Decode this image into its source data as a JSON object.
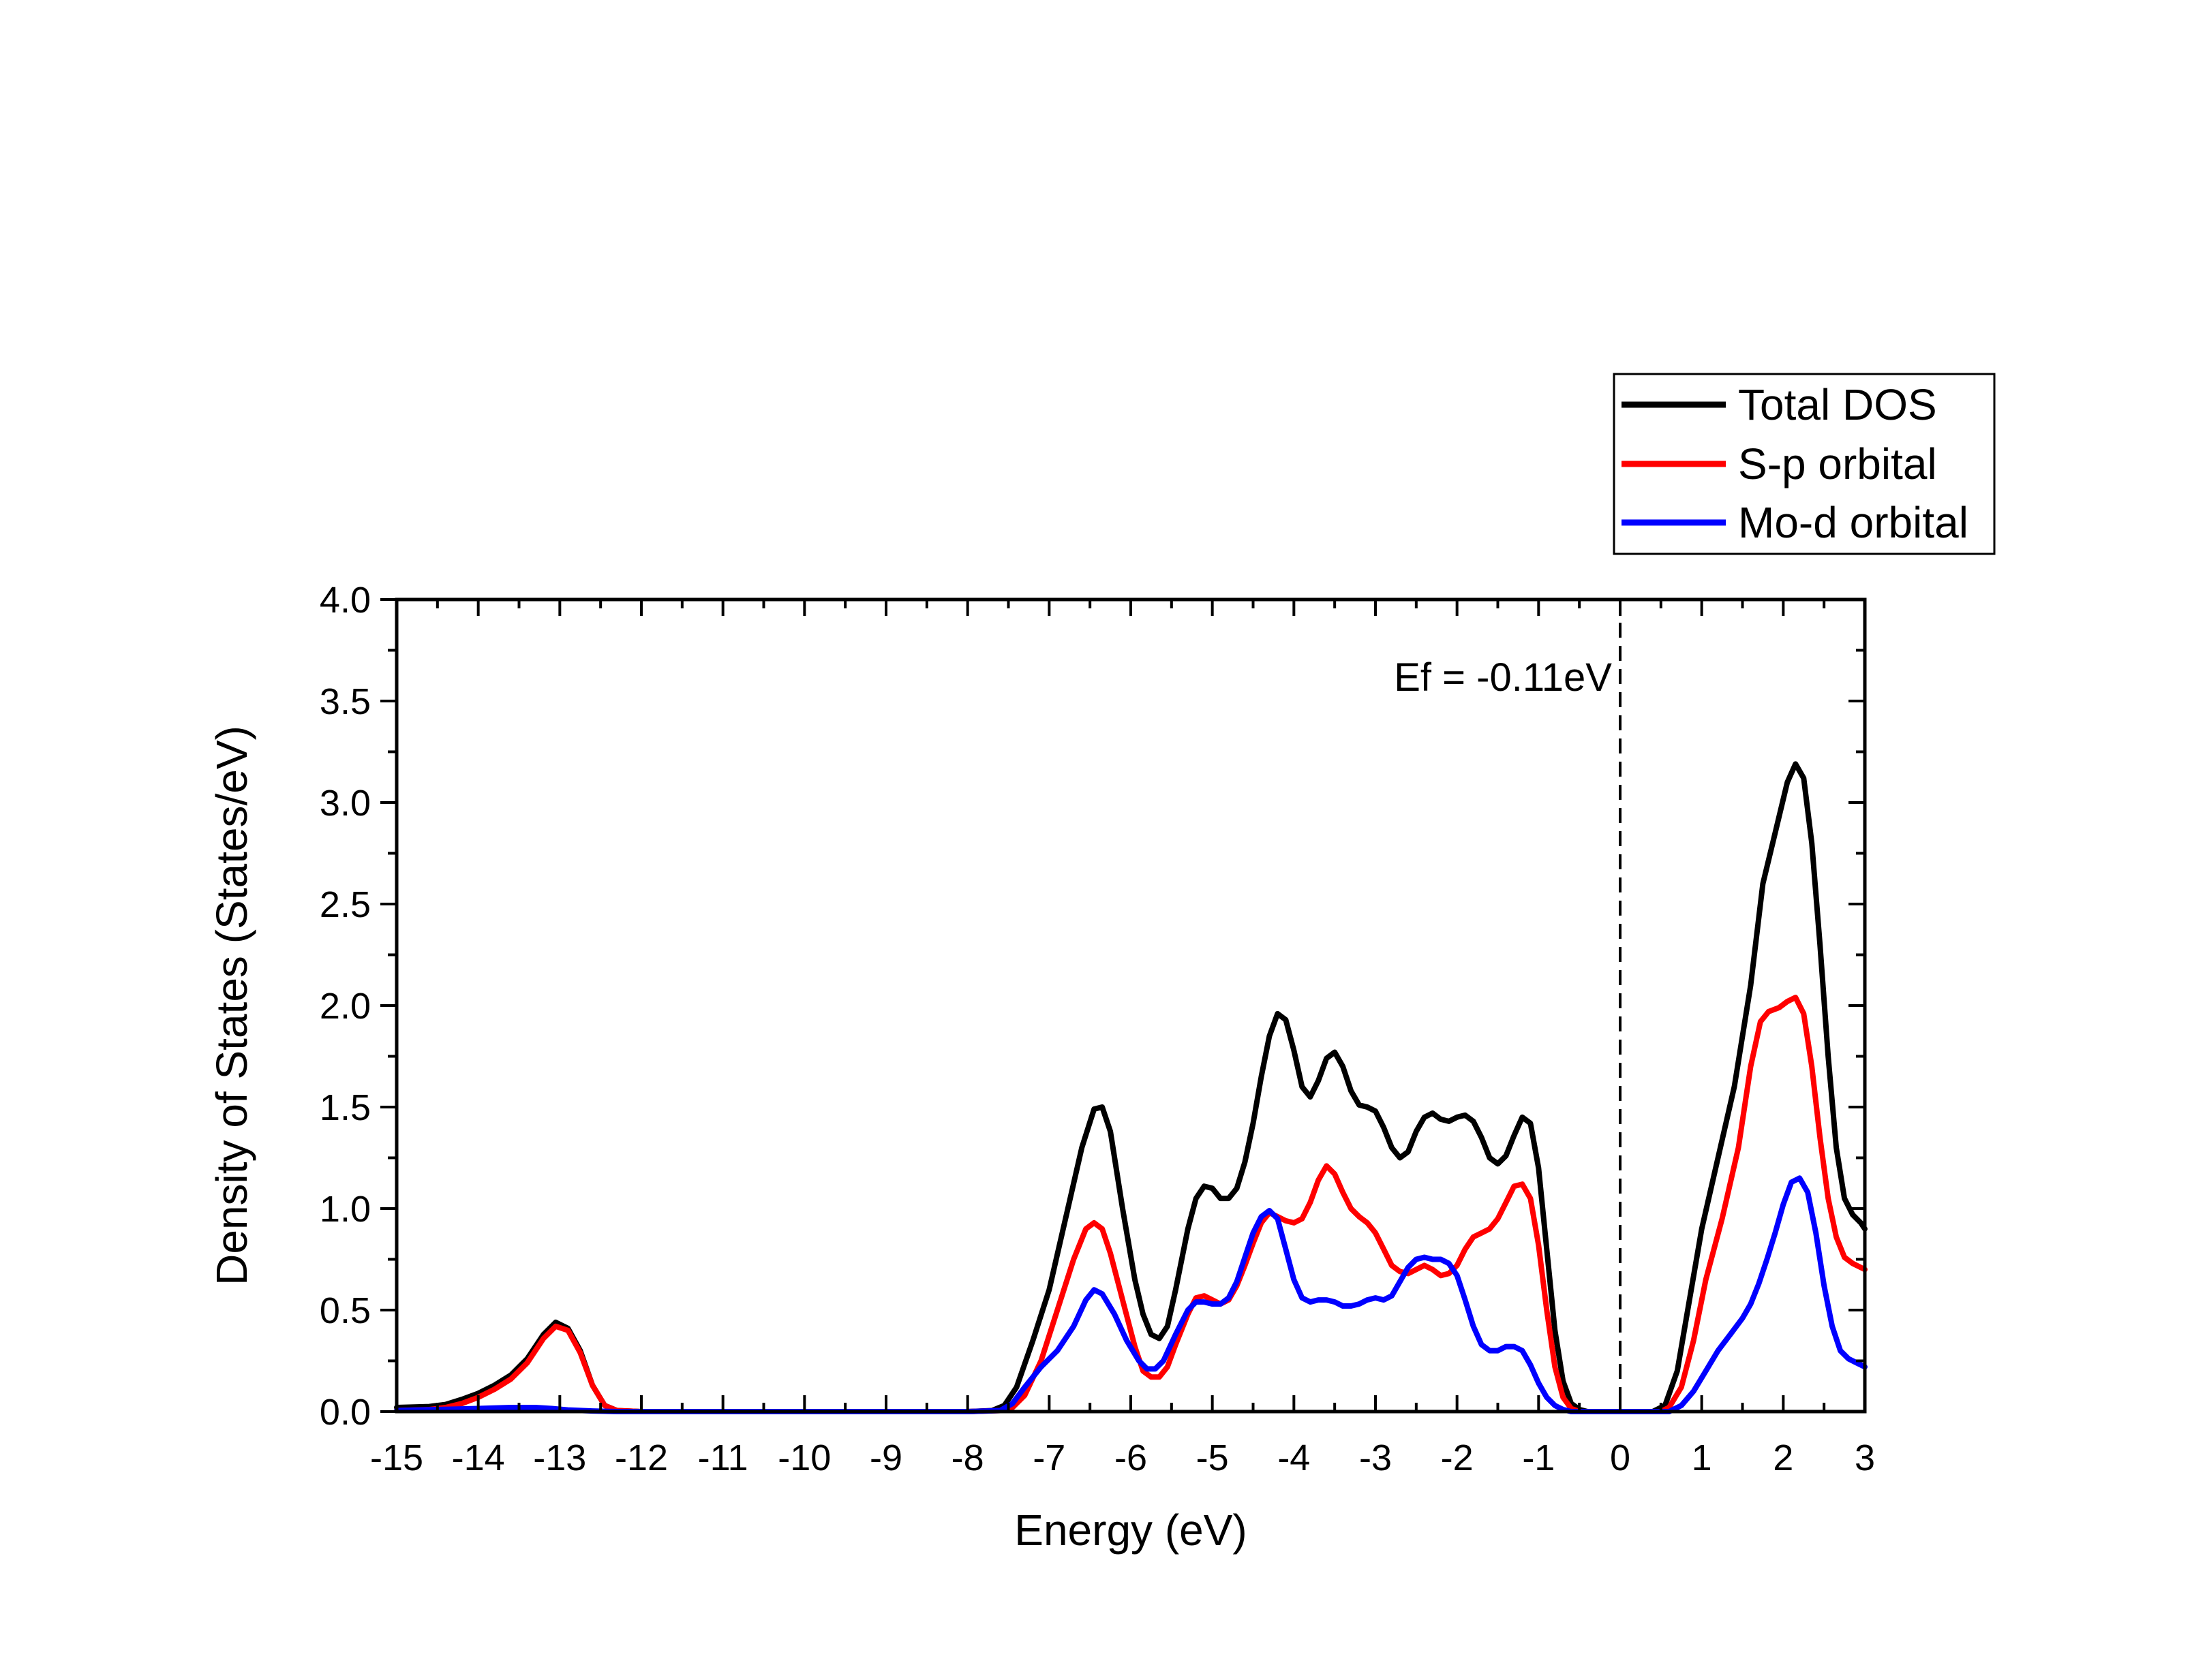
{
  "chart_data": {
    "type": "line",
    "title": "",
    "xlabel": "Energy (eV)",
    "ylabel": "Density of States (States/eV)",
    "xlim": [
      -15,
      3
    ],
    "ylim": [
      0,
      4
    ],
    "xticks": [
      -15,
      -14,
      -13,
      -12,
      -11,
      -10,
      -9,
      -8,
      -7,
      -6,
      -5,
      -4,
      -3,
      -2,
      -1,
      0,
      1,
      2,
      3
    ],
    "xtick_labels": [
      "-15",
      "-14",
      "-13",
      "-12",
      "-11",
      "-10",
      "-9",
      "-8",
      "-7",
      "-6",
      "-5",
      "-4",
      "-3",
      "-2",
      "-1",
      "0",
      "1",
      "2",
      "3"
    ],
    "yticks": [
      0,
      0.5,
      1,
      1.5,
      2,
      2.5,
      3,
      3.5,
      4
    ],
    "ytick_labels": [
      "0.0",
      "0.5",
      "1.0",
      "1.5",
      "2.0",
      "2.5",
      "3.0",
      "3.5",
      "4.0"
    ],
    "grid": false,
    "legend_position": "top-right, outside plot",
    "series": [
      {
        "name": "Total DOS",
        "color": "#000000",
        "points": [
          [
            -15,
            0.02
          ],
          [
            -14.6,
            0.025
          ],
          [
            -14.4,
            0.035
          ],
          [
            -14.2,
            0.06
          ],
          [
            -14.0,
            0.09
          ],
          [
            -13.8,
            0.13
          ],
          [
            -13.6,
            0.18
          ],
          [
            -13.4,
            0.26
          ],
          [
            -13.2,
            0.38
          ],
          [
            -13.05,
            0.44
          ],
          [
            -12.9,
            0.41
          ],
          [
            -12.75,
            0.3
          ],
          [
            -12.6,
            0.13
          ],
          [
            -12.45,
            0.03
          ],
          [
            -12.3,
            0.005
          ],
          [
            -12.0,
            0.0
          ],
          [
            -8.0,
            0.0
          ],
          [
            -7.7,
            0.005
          ],
          [
            -7.55,
            0.03
          ],
          [
            -7.4,
            0.12
          ],
          [
            -7.2,
            0.35
          ],
          [
            -7.0,
            0.6
          ],
          [
            -6.8,
            0.95
          ],
          [
            -6.6,
            1.3
          ],
          [
            -6.45,
            1.49
          ],
          [
            -6.35,
            1.5
          ],
          [
            -6.25,
            1.38
          ],
          [
            -6.1,
            1.0
          ],
          [
            -5.95,
            0.65
          ],
          [
            -5.85,
            0.48
          ],
          [
            -5.75,
            0.38
          ],
          [
            -5.65,
            0.36
          ],
          [
            -5.55,
            0.42
          ],
          [
            -5.45,
            0.6
          ],
          [
            -5.3,
            0.9
          ],
          [
            -5.2,
            1.05
          ],
          [
            -5.1,
            1.11
          ],
          [
            -5.0,
            1.1
          ],
          [
            -4.9,
            1.05
          ],
          [
            -4.8,
            1.05
          ],
          [
            -4.7,
            1.1
          ],
          [
            -4.6,
            1.23
          ],
          [
            -4.5,
            1.42
          ],
          [
            -4.4,
            1.65
          ],
          [
            -4.3,
            1.85
          ],
          [
            -4.2,
            1.96
          ],
          [
            -4.1,
            1.93
          ],
          [
            -4.0,
            1.78
          ],
          [
            -3.9,
            1.6
          ],
          [
            -3.8,
            1.55
          ],
          [
            -3.7,
            1.63
          ],
          [
            -3.6,
            1.74
          ],
          [
            -3.5,
            1.77
          ],
          [
            -3.4,
            1.7
          ],
          [
            -3.3,
            1.58
          ],
          [
            -3.2,
            1.51
          ],
          [
            -3.1,
            1.5
          ],
          [
            -3.0,
            1.48
          ],
          [
            -2.9,
            1.4
          ],
          [
            -2.8,
            1.3
          ],
          [
            -2.7,
            1.25
          ],
          [
            -2.6,
            1.28
          ],
          [
            -2.5,
            1.38
          ],
          [
            -2.4,
            1.45
          ],
          [
            -2.3,
            1.47
          ],
          [
            -2.2,
            1.44
          ],
          [
            -2.1,
            1.43
          ],
          [
            -2.0,
            1.45
          ],
          [
            -1.9,
            1.46
          ],
          [
            -1.8,
            1.43
          ],
          [
            -1.7,
            1.35
          ],
          [
            -1.6,
            1.25
          ],
          [
            -1.5,
            1.22
          ],
          [
            -1.4,
            1.26
          ],
          [
            -1.3,
            1.36
          ],
          [
            -1.2,
            1.45
          ],
          [
            -1.1,
            1.42
          ],
          [
            -1.0,
            1.2
          ],
          [
            -0.9,
            0.8
          ],
          [
            -0.8,
            0.4
          ],
          [
            -0.7,
            0.15
          ],
          [
            -0.6,
            0.04
          ],
          [
            -0.5,
            0.01
          ],
          [
            -0.4,
            0.0
          ],
          [
            0.4,
            0.0
          ],
          [
            0.55,
            0.03
          ],
          [
            0.7,
            0.2
          ],
          [
            0.85,
            0.55
          ],
          [
            1.0,
            0.9
          ],
          [
            1.2,
            1.25
          ],
          [
            1.4,
            1.6
          ],
          [
            1.6,
            2.1
          ],
          [
            1.75,
            2.6
          ],
          [
            1.9,
            2.85
          ],
          [
            2.05,
            3.1
          ],
          [
            2.15,
            3.19
          ],
          [
            2.25,
            3.12
          ],
          [
            2.35,
            2.8
          ],
          [
            2.45,
            2.3
          ],
          [
            2.55,
            1.75
          ],
          [
            2.65,
            1.3
          ],
          [
            2.75,
            1.05
          ],
          [
            2.85,
            0.97
          ],
          [
            2.95,
            0.93
          ],
          [
            3.0,
            0.9
          ]
        ]
      },
      {
        "name": "S-p orbital",
        "color": "#ff0000",
        "points": [
          [
            -15,
            0.005
          ],
          [
            -14.6,
            0.01
          ],
          [
            -14.4,
            0.02
          ],
          [
            -14.2,
            0.04
          ],
          [
            -14.0,
            0.07
          ],
          [
            -13.8,
            0.11
          ],
          [
            -13.6,
            0.16
          ],
          [
            -13.4,
            0.24
          ],
          [
            -13.2,
            0.36
          ],
          [
            -13.05,
            0.42
          ],
          [
            -12.9,
            0.4
          ],
          [
            -12.75,
            0.29
          ],
          [
            -12.6,
            0.13
          ],
          [
            -12.45,
            0.03
          ],
          [
            -12.3,
            0.005
          ],
          [
            -12.0,
            0.0
          ],
          [
            -8.0,
            0.0
          ],
          [
            -7.6,
            0.005
          ],
          [
            -7.45,
            0.02
          ],
          [
            -7.3,
            0.08
          ],
          [
            -7.1,
            0.25
          ],
          [
            -6.9,
            0.5
          ],
          [
            -6.7,
            0.75
          ],
          [
            -6.55,
            0.9
          ],
          [
            -6.45,
            0.93
          ],
          [
            -6.35,
            0.9
          ],
          [
            -6.25,
            0.78
          ],
          [
            -6.1,
            0.55
          ],
          [
            -5.95,
            0.32
          ],
          [
            -5.85,
            0.2
          ],
          [
            -5.75,
            0.17
          ],
          [
            -5.65,
            0.17
          ],
          [
            -5.55,
            0.22
          ],
          [
            -5.45,
            0.33
          ],
          [
            -5.3,
            0.48
          ],
          [
            -5.2,
            0.56
          ],
          [
            -5.1,
            0.57
          ],
          [
            -5.0,
            0.55
          ],
          [
            -4.9,
            0.53
          ],
          [
            -4.8,
            0.55
          ],
          [
            -4.7,
            0.62
          ],
          [
            -4.6,
            0.72
          ],
          [
            -4.5,
            0.83
          ],
          [
            -4.4,
            0.93
          ],
          [
            -4.3,
            0.98
          ],
          [
            -4.2,
            0.96
          ],
          [
            -4.1,
            0.94
          ],
          [
            -4.0,
            0.93
          ],
          [
            -3.9,
            0.95
          ],
          [
            -3.8,
            1.03
          ],
          [
            -3.7,
            1.14
          ],
          [
            -3.6,
            1.21
          ],
          [
            -3.5,
            1.17
          ],
          [
            -3.4,
            1.08
          ],
          [
            -3.3,
            1.0
          ],
          [
            -3.2,
            0.96
          ],
          [
            -3.1,
            0.93
          ],
          [
            -3.0,
            0.88
          ],
          [
            -2.9,
            0.8
          ],
          [
            -2.8,
            0.72
          ],
          [
            -2.7,
            0.69
          ],
          [
            -2.6,
            0.68
          ],
          [
            -2.5,
            0.7
          ],
          [
            -2.4,
            0.72
          ],
          [
            -2.3,
            0.7
          ],
          [
            -2.2,
            0.67
          ],
          [
            -2.1,
            0.68
          ],
          [
            -2.0,
            0.72
          ],
          [
            -1.9,
            0.8
          ],
          [
            -1.8,
            0.86
          ],
          [
            -1.7,
            0.88
          ],
          [
            -1.6,
            0.9
          ],
          [
            -1.5,
            0.95
          ],
          [
            -1.4,
            1.03
          ],
          [
            -1.3,
            1.11
          ],
          [
            -1.2,
            1.12
          ],
          [
            -1.1,
            1.05
          ],
          [
            -1.0,
            0.82
          ],
          [
            -0.9,
            0.5
          ],
          [
            -0.8,
            0.22
          ],
          [
            -0.7,
            0.07
          ],
          [
            -0.6,
            0.015
          ],
          [
            -0.5,
            0.0
          ],
          [
            0.5,
            0.0
          ],
          [
            0.6,
            0.02
          ],
          [
            0.75,
            0.12
          ],
          [
            0.9,
            0.35
          ],
          [
            1.05,
            0.65
          ],
          [
            1.25,
            0.95
          ],
          [
            1.45,
            1.3
          ],
          [
            1.6,
            1.7
          ],
          [
            1.72,
            1.92
          ],
          [
            1.82,
            1.97
          ],
          [
            1.95,
            1.99
          ],
          [
            2.05,
            2.02
          ],
          [
            2.15,
            2.04
          ],
          [
            2.25,
            1.96
          ],
          [
            2.35,
            1.7
          ],
          [
            2.45,
            1.35
          ],
          [
            2.55,
            1.05
          ],
          [
            2.65,
            0.86
          ],
          [
            2.75,
            0.76
          ],
          [
            2.85,
            0.73
          ],
          [
            2.95,
            0.71
          ],
          [
            3.0,
            0.7
          ]
        ]
      },
      {
        "name": "Mo-d orbital",
        "color": "#0000ff",
        "points": [
          [
            -15,
            0.005
          ],
          [
            -14.5,
            0.01
          ],
          [
            -14.0,
            0.015
          ],
          [
            -13.6,
            0.02
          ],
          [
            -13.3,
            0.02
          ],
          [
            -13.1,
            0.015
          ],
          [
            -12.9,
            0.008
          ],
          [
            -12.6,
            0.003
          ],
          [
            -12.3,
            0.0
          ],
          [
            -8.0,
            0.0
          ],
          [
            -7.6,
            0.005
          ],
          [
            -7.45,
            0.04
          ],
          [
            -7.3,
            0.12
          ],
          [
            -7.1,
            0.22
          ],
          [
            -6.9,
            0.3
          ],
          [
            -6.7,
            0.42
          ],
          [
            -6.55,
            0.55
          ],
          [
            -6.45,
            0.6
          ],
          [
            -6.35,
            0.58
          ],
          [
            -6.2,
            0.48
          ],
          [
            -6.05,
            0.35
          ],
          [
            -5.9,
            0.25
          ],
          [
            -5.8,
            0.21
          ],
          [
            -5.7,
            0.21
          ],
          [
            -5.6,
            0.25
          ],
          [
            -5.45,
            0.38
          ],
          [
            -5.3,
            0.5
          ],
          [
            -5.2,
            0.54
          ],
          [
            -5.1,
            0.54
          ],
          [
            -5.0,
            0.53
          ],
          [
            -4.9,
            0.53
          ],
          [
            -4.8,
            0.56
          ],
          [
            -4.7,
            0.64
          ],
          [
            -4.6,
            0.76
          ],
          [
            -4.5,
            0.88
          ],
          [
            -4.4,
            0.96
          ],
          [
            -4.3,
            0.99
          ],
          [
            -4.2,
            0.95
          ],
          [
            -4.1,
            0.8
          ],
          [
            -4.0,
            0.65
          ],
          [
            -3.9,
            0.56
          ],
          [
            -3.8,
            0.54
          ],
          [
            -3.7,
            0.55
          ],
          [
            -3.6,
            0.55
          ],
          [
            -3.5,
            0.54
          ],
          [
            -3.4,
            0.52
          ],
          [
            -3.3,
            0.52
          ],
          [
            -3.2,
            0.53
          ],
          [
            -3.1,
            0.55
          ],
          [
            -3.0,
            0.56
          ],
          [
            -2.9,
            0.55
          ],
          [
            -2.8,
            0.57
          ],
          [
            -2.7,
            0.64
          ],
          [
            -2.6,
            0.71
          ],
          [
            -2.5,
            0.75
          ],
          [
            -2.4,
            0.76
          ],
          [
            -2.3,
            0.75
          ],
          [
            -2.2,
            0.75
          ],
          [
            -2.1,
            0.73
          ],
          [
            -2.0,
            0.67
          ],
          [
            -1.9,
            0.55
          ],
          [
            -1.8,
            0.42
          ],
          [
            -1.7,
            0.33
          ],
          [
            -1.6,
            0.3
          ],
          [
            -1.5,
            0.3
          ],
          [
            -1.4,
            0.32
          ],
          [
            -1.3,
            0.32
          ],
          [
            -1.2,
            0.3
          ],
          [
            -1.1,
            0.23
          ],
          [
            -1.0,
            0.14
          ],
          [
            -0.9,
            0.07
          ],
          [
            -0.8,
            0.03
          ],
          [
            -0.7,
            0.01
          ],
          [
            -0.6,
            0.0
          ],
          [
            0.6,
            0.0
          ],
          [
            0.75,
            0.03
          ],
          [
            0.9,
            0.1
          ],
          [
            1.05,
            0.2
          ],
          [
            1.2,
            0.3
          ],
          [
            1.35,
            0.38
          ],
          [
            1.5,
            0.46
          ],
          [
            1.6,
            0.53
          ],
          [
            1.7,
            0.63
          ],
          [
            1.8,
            0.75
          ],
          [
            1.9,
            0.88
          ],
          [
            2.0,
            1.02
          ],
          [
            2.1,
            1.13
          ],
          [
            2.2,
            1.15
          ],
          [
            2.3,
            1.08
          ],
          [
            2.4,
            0.88
          ],
          [
            2.5,
            0.62
          ],
          [
            2.6,
            0.42
          ],
          [
            2.7,
            0.3
          ],
          [
            2.8,
            0.26
          ],
          [
            2.9,
            0.24
          ],
          [
            3.0,
            0.22
          ]
        ]
      }
    ],
    "annotations": [
      {
        "text": "Ef = -0.11eV",
        "x": 0,
        "linestyle": "dashed vertical line"
      }
    ]
  }
}
